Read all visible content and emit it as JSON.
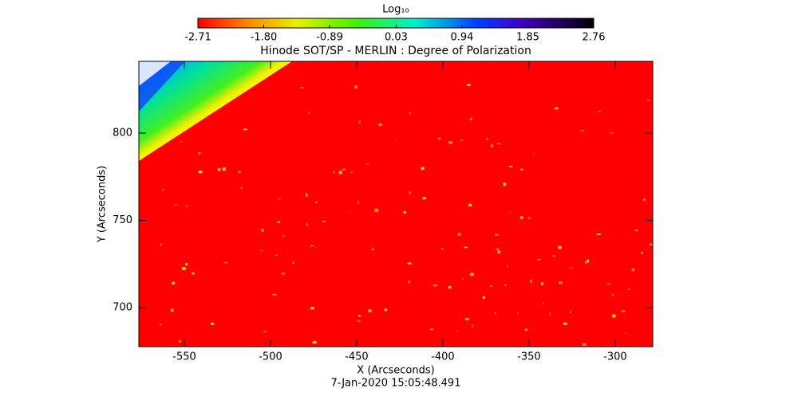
{
  "chart_data": {
    "type": "image",
    "title": "Hinode SOT/SP - MERLIN : Degree of Polarization",
    "xlabel": "X (Arcseconds)",
    "ylabel": "Y (Arcseconds)",
    "timestamp": "7-Jan-2020 15:05:48.491",
    "xlim": [
      -576.4,
      -278.2
    ],
    "ylim": [
      677.6,
      841.1
    ],
    "xticks": [
      -550,
      -500,
      -450,
      -400,
      -350,
      -300
    ],
    "yticks": [
      700,
      750,
      800
    ],
    "colorbar_label": "Log₁₀",
    "colorbar_lim": [
      -2.71,
      2.76
    ],
    "colorbar_ticks": [
      -2.71,
      {
        "value": -1.8,
        "label": "-1.80"
      },
      -0.89,
      0.03,
      0.94,
      1.85,
      2.76
    ]
  }
}
